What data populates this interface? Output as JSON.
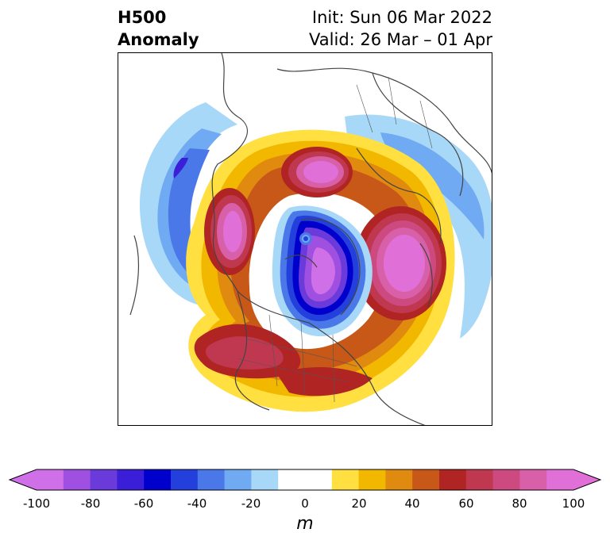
{
  "header": {
    "title_line1": "H500",
    "title_line2": "Anomaly",
    "init_text": "Init: Sun 06 Mar 2022",
    "valid_text": "Valid: 26 Mar – 01 Apr"
  },
  "colorbar": {
    "unit": "m",
    "min": -100,
    "max": 100,
    "tick_labels": [
      "-100",
      "-80",
      "-60",
      "-40",
      "-20",
      "0",
      "20",
      "40",
      "60",
      "80",
      "100"
    ],
    "bins": [
      {
        "from": -100,
        "to": -90,
        "color": "#d070e8"
      },
      {
        "from": -90,
        "to": -80,
        "color": "#a050e0"
      },
      {
        "from": -80,
        "to": -70,
        "color": "#6a3ada"
      },
      {
        "from": -70,
        "to": -60,
        "color": "#3a1ed8"
      },
      {
        "from": -60,
        "to": -50,
        "color": "#0000cc"
      },
      {
        "from": -50,
        "to": -40,
        "color": "#2440dc"
      },
      {
        "from": -40,
        "to": -30,
        "color": "#4a78e8"
      },
      {
        "from": -30,
        "to": -20,
        "color": "#70aaf2"
      },
      {
        "from": -20,
        "to": -10,
        "color": "#a8d8f8"
      },
      {
        "from": -10,
        "to": 10,
        "color": "#ffffff"
      },
      {
        "from": 10,
        "to": 20,
        "color": "#ffe040"
      },
      {
        "from": 20,
        "to": 30,
        "color": "#f2b800"
      },
      {
        "from": 30,
        "to": 40,
        "color": "#e08a10"
      },
      {
        "from": 40,
        "to": 50,
        "color": "#c85818"
      },
      {
        "from": 50,
        "to": 60,
        "color": "#b02424"
      },
      {
        "from": 60,
        "to": 70,
        "color": "#c03850"
      },
      {
        "from": 70,
        "to": 80,
        "color": "#cc4a80"
      },
      {
        "from": 80,
        "to": 90,
        "color": "#d860a8"
      },
      {
        "from": 90,
        "to": 100,
        "color": "#e070d8"
      }
    ],
    "extend": "both"
  },
  "map": {
    "projection": "north-polar-stereographic",
    "field": "500 hPa height anomaly",
    "colors": {
      "coast": "#444444",
      "border": "#555555"
    }
  }
}
